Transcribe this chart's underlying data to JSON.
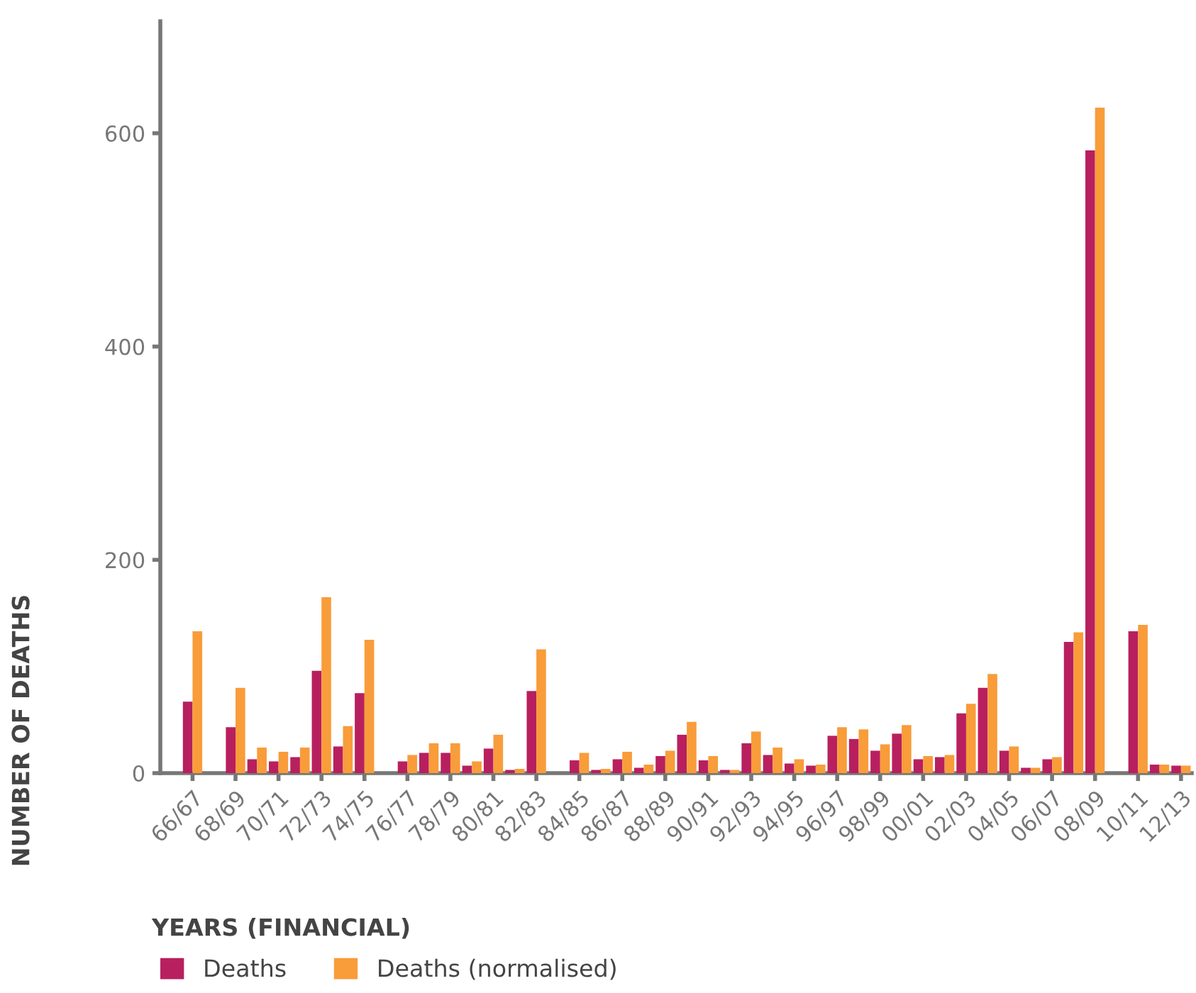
{
  "chart_data": {
    "type": "bar",
    "xlabel": "YEARS (FINANCIAL)",
    "ylabel": "NUMBER OF DEATHS",
    "categories": [
      "66/67",
      null,
      "68/69",
      null,
      "70/71",
      null,
      "72/73",
      null,
      "74/75",
      null,
      "76/77",
      null,
      "78/79",
      null,
      "80/81",
      null,
      "82/83",
      null,
      "84/85",
      null,
      "86/87",
      null,
      "88/89",
      null,
      "90/91",
      null,
      "92/93",
      null,
      "94/95",
      null,
      "96/97",
      null,
      "98/99",
      null,
      "00/01",
      null,
      "02/03",
      null,
      "04/05",
      null,
      "06/07",
      null,
      "08/09",
      null,
      "10/11",
      null,
      "12/13"
    ],
    "series": [
      {
        "name": "Deaths",
        "color": "#b81f5e",
        "values": [
          67,
          null,
          43,
          13,
          11,
          15,
          96,
          25,
          75,
          null,
          11,
          19,
          19,
          7,
          23,
          3,
          77,
          null,
          12,
          3,
          13,
          5,
          16,
          36,
          12,
          3,
          28,
          17,
          9,
          7,
          35,
          32,
          21,
          37,
          13,
          15,
          56,
          80,
          21,
          5,
          13,
          123,
          584,
          null,
          133,
          8,
          7
        ]
      },
      {
        "name": "Deaths (normalised)",
        "color": "#f99c3a",
        "values": [
          133,
          null,
          80,
          24,
          20,
          24,
          165,
          44,
          125,
          null,
          17,
          28,
          28,
          11,
          36,
          4,
          116,
          null,
          19,
          4,
          20,
          8,
          21,
          48,
          16,
          3,
          39,
          24,
          13,
          8,
          43,
          41,
          27,
          45,
          16,
          17,
          65,
          93,
          25,
          5,
          15,
          132,
          624,
          null,
          139,
          8,
          7
        ]
      }
    ],
    "ylim": [
      0,
      705
    ],
    "yticks": [
      0,
      200,
      400,
      600
    ],
    "grid": false,
    "legend": "bottom left"
  }
}
